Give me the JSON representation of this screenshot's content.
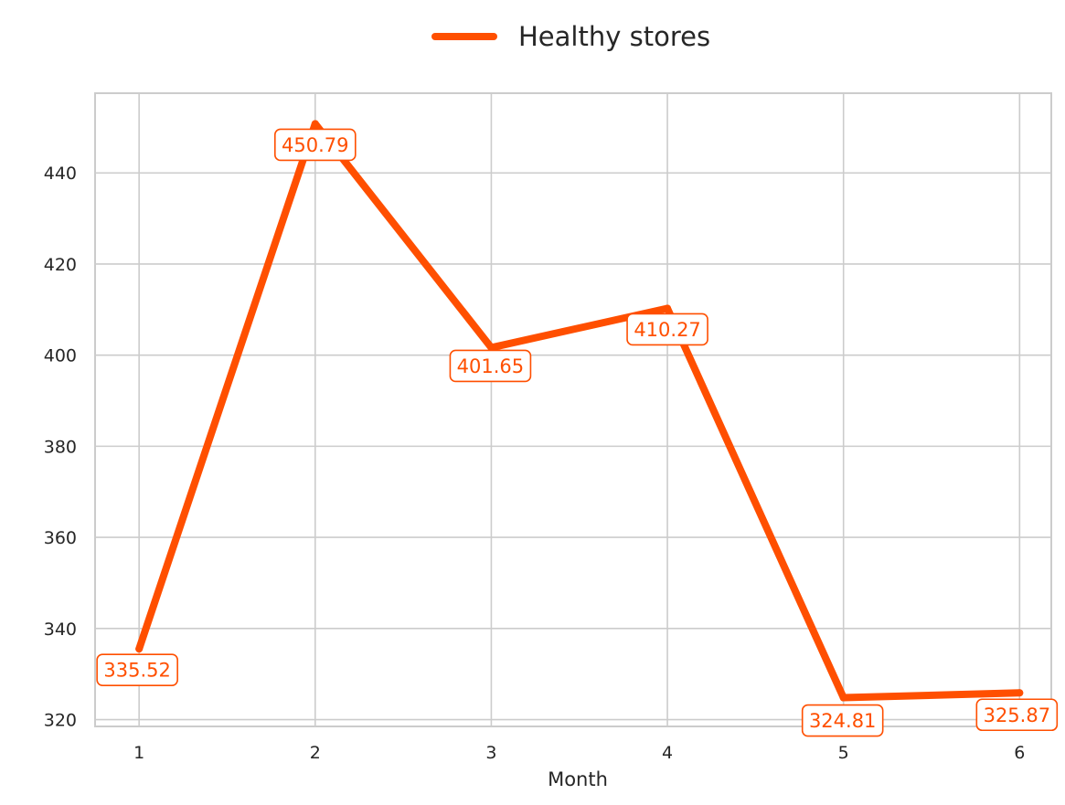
{
  "chart_data": {
    "type": "line",
    "x": [
      1,
      2,
      3,
      4,
      5,
      6
    ],
    "series": [
      {
        "name": "Healthy stores",
        "values": [
          335.52,
          450.79,
          401.65,
          410.27,
          324.81,
          325.87
        ],
        "color": "#ff4f00"
      }
    ],
    "data_labels": [
      "335.52",
      "450.79",
      "401.65",
      "410.27",
      "324.81",
      "325.87"
    ],
    "x_ticks": [
      "1",
      "2",
      "3",
      "4",
      "5",
      "6"
    ],
    "y_ticks": [
      "320",
      "340",
      "360",
      "380",
      "400",
      "420",
      "440"
    ],
    "xlabel": "Month",
    "ylabel": "",
    "title": "",
    "xlim": [
      0.75,
      6.18
    ],
    "ylim": [
      318.5,
      457.5
    ],
    "grid": true,
    "legend_position": "top-center",
    "colors": {
      "grid": "#cccccc",
      "axis": "#cccccc",
      "text": "#262626"
    }
  }
}
